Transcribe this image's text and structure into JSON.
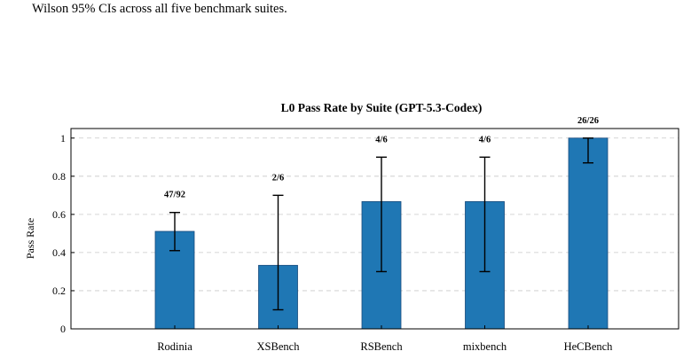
{
  "caption": {
    "text": "Wilson 95% CIs across all five benchmark suites."
  },
  "chart_data": {
    "type": "bar",
    "title": "L0 Pass Rate by Suite (GPT-5.3-Codex)",
    "xlabel": "",
    "ylabel": "Pass Rate",
    "ylim": [
      0,
      1.05
    ],
    "yticks": [
      0,
      0.2,
      0.4,
      0.6,
      0.8,
      1
    ],
    "ytick_labels": [
      "0",
      "0.2",
      "0.4",
      "0.6",
      "0.8",
      "1"
    ],
    "grid": true,
    "categories": [
      "Rodinia",
      "XSBench",
      "RSBench",
      "mixbench",
      "HeCBench"
    ],
    "values": [
      0.511,
      0.333,
      0.667,
      0.667,
      1.0
    ],
    "ci_low": [
      0.41,
      0.1,
      0.3,
      0.3,
      0.87
    ],
    "ci_high": [
      0.61,
      0.7,
      0.9,
      0.9,
      1.0
    ],
    "data_labels": [
      "47/92",
      "2/6",
      "4/6",
      "4/6",
      "26/26"
    ],
    "bar_color": "#1f77b4",
    "bar_edge_color": "#174a7c"
  }
}
